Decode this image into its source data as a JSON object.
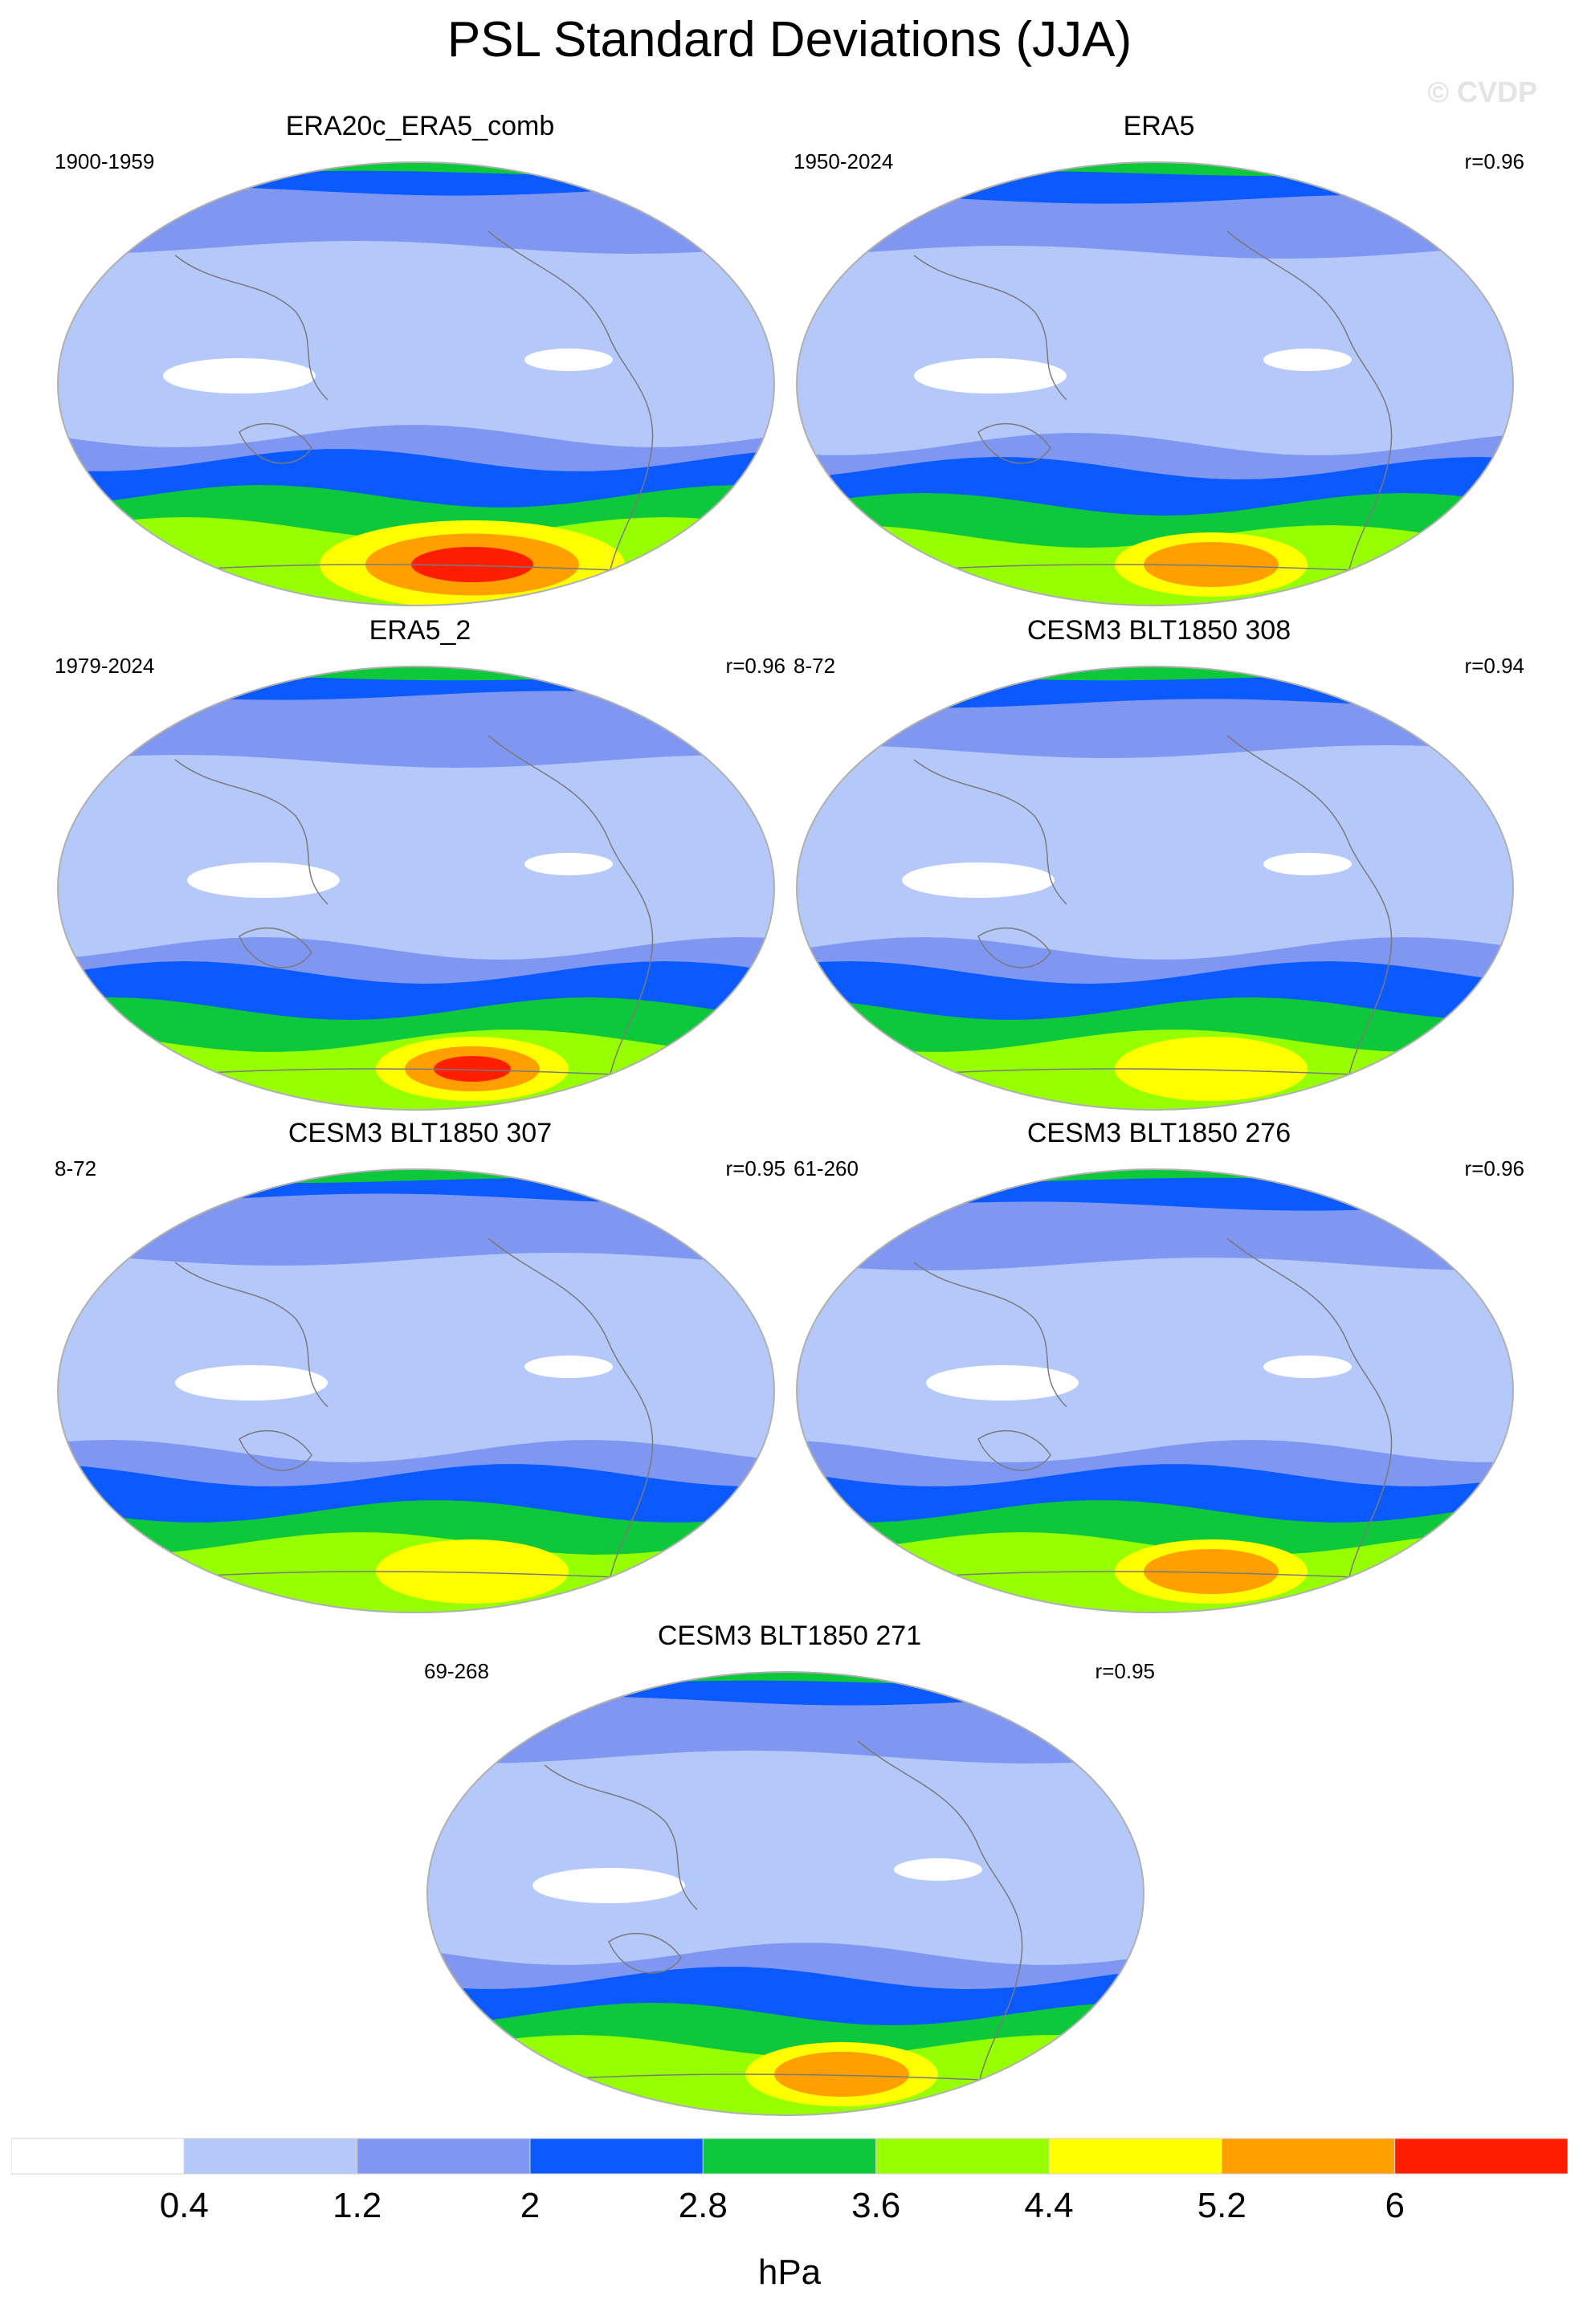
{
  "figure": {
    "title": "PSL Standard Deviations (JJA)",
    "watermark": "© CVDP"
  },
  "colors": {
    "levels": [
      "#ffffff",
      "#b4c8fa",
      "#7f97f0",
      "#0a5aff",
      "#0ec83c",
      "#96ff00",
      "#ffff00",
      "#ffa000",
      "#ff1e00"
    ],
    "coast": "#7a7a7a",
    "outline": "#b0b0b0"
  },
  "chart_data": {
    "type": "heatmap",
    "variable": "PSL",
    "season": "JJA",
    "projection": "robinson-like global, pacific-centered",
    "panels": [
      {
        "title": "ERA20c_ERA5_comb",
        "period": "1900-1959",
        "corr": "",
        "peak_level": 8
      },
      {
        "title": "ERA5",
        "period": "1950-2024",
        "corr": "r=0.96",
        "peak_level": 7
      },
      {
        "title": "ERA5_2",
        "period": "1979-2024",
        "corr": "r=0.96",
        "peak_level": 8
      },
      {
        "title": "CESM3 BLT1850 308",
        "period": "8-72",
        "corr": "r=0.94",
        "peak_level": 6
      },
      {
        "title": "CESM3 BLT1850 307",
        "period": "8-72",
        "corr": "r=0.95",
        "peak_level": 6
      },
      {
        "title": "CESM3 BLT1850 276",
        "period": "61-260",
        "corr": "r=0.96",
        "peak_level": 7
      },
      {
        "title": "CESM3 BLT1850 271",
        "period": "69-268",
        "corr": "r=0.95",
        "peak_level": 7
      }
    ],
    "colorbar": {
      "labels": [
        "0.4",
        "1.2",
        "2",
        "2.8",
        "3.6",
        "4.4",
        "5.2",
        "6"
      ],
      "unit": "hPa"
    }
  }
}
